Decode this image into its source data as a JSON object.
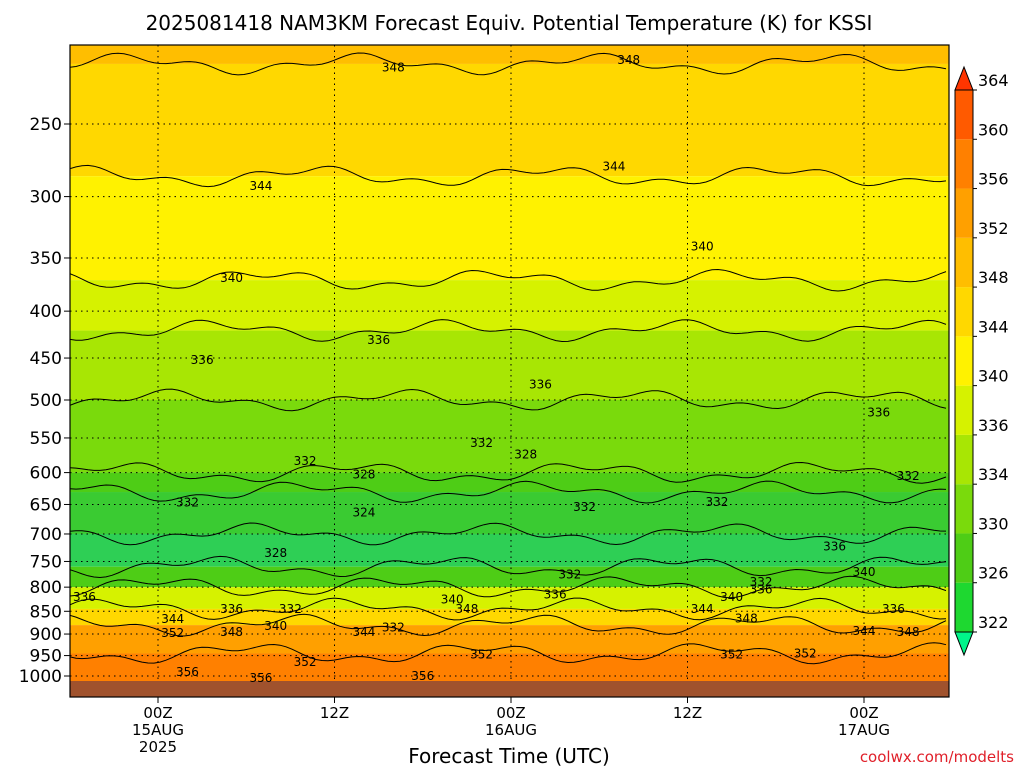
{
  "chart_data": {
    "type": "heatmap",
    "title": "2025081418 NAM3KM Forecast Equiv. Potential Temperature (K) for KSSI",
    "xlabel": "Forecast Time (UTC)",
    "ylabel": "",
    "credit": "coolwx.com/modelts",
    "x_range_hours": [
      -5,
      55
    ],
    "x_ticks": [
      {
        "hour": 0,
        "lines": [
          "00Z",
          "15AUG",
          "2025"
        ]
      },
      {
        "hour": 12,
        "lines": [
          "12Z"
        ]
      },
      {
        "hour": 24,
        "lines": [
          "00Z",
          "16AUG"
        ]
      },
      {
        "hour": 36,
        "lines": [
          "12Z"
        ]
      },
      {
        "hour": 48,
        "lines": [
          "00Z",
          "17AUG"
        ]
      }
    ],
    "y_axis": {
      "scale": "log-pressure",
      "unit": "hPa",
      "range": [
        1050,
        190
      ],
      "reversed": true
    },
    "y_ticks": [
      250,
      300,
      350,
      400,
      450,
      500,
      550,
      600,
      650,
      700,
      750,
      800,
      850,
      900,
      950,
      1000
    ],
    "colorbar": {
      "levels": [
        322,
        326,
        330,
        334,
        336,
        340,
        344,
        348,
        352,
        356,
        360,
        364
      ],
      "colors": [
        "#00f58a",
        "#1ed830",
        "#4ecd16",
        "#7ada0c",
        "#a8e604",
        "#d6f200",
        "#fff200",
        "#ffd800",
        "#ffbe00",
        "#ffa000",
        "#ff8000",
        "#ff5a00",
        "#ff3500"
      ]
    },
    "contour_labels": [
      {
        "hour": 32,
        "p": 213,
        "value": "348"
      },
      {
        "hour": 16,
        "p": 217,
        "value": "348"
      },
      {
        "hour": 31,
        "p": 278,
        "value": "344"
      },
      {
        "hour": 7,
        "p": 292,
        "value": "344"
      },
      {
        "hour": 37,
        "p": 340,
        "value": "340"
      },
      {
        "hour": 5,
        "p": 368,
        "value": "340"
      },
      {
        "hour": 15,
        "p": 430,
        "value": "336"
      },
      {
        "hour": 3,
        "p": 452,
        "value": "336"
      },
      {
        "hour": 26,
        "p": 481,
        "value": "336"
      },
      {
        "hour": 49,
        "p": 516,
        "value": "336"
      },
      {
        "hour": 22,
        "p": 557,
        "value": "332"
      },
      {
        "hour": 10,
        "p": 583,
        "value": "332"
      },
      {
        "hour": 25,
        "p": 573,
        "value": "328"
      },
      {
        "hour": 14,
        "p": 603,
        "value": "328"
      },
      {
        "hour": 51,
        "p": 605,
        "value": "332"
      },
      {
        "hour": 2,
        "p": 647,
        "value": "332"
      },
      {
        "hour": 29,
        "p": 654,
        "value": "332"
      },
      {
        "hour": 38,
        "p": 646,
        "value": "332"
      },
      {
        "hour": 14,
        "p": 663,
        "value": "324"
      },
      {
        "hour": 8,
        "p": 734,
        "value": "328"
      },
      {
        "hour": 46,
        "p": 722,
        "value": "336"
      },
      {
        "hour": 48,
        "p": 770,
        "value": "340"
      },
      {
        "hour": 28,
        "p": 775,
        "value": "332"
      },
      {
        "hour": 41,
        "p": 790,
        "value": "332"
      },
      {
        "hour": 41,
        "p": 805,
        "value": "336"
      },
      {
        "hour": -5,
        "p": 820,
        "value": "336"
      },
      {
        "hour": 27,
        "p": 815,
        "value": "336"
      },
      {
        "hour": 20,
        "p": 825,
        "value": "340"
      },
      {
        "hour": 39,
        "p": 820,
        "value": "340"
      },
      {
        "hour": 5,
        "p": 845,
        "value": "336"
      },
      {
        "hour": 21,
        "p": 845,
        "value": "348"
      },
      {
        "hour": 37,
        "p": 845,
        "value": "344"
      },
      {
        "hour": 50,
        "p": 845,
        "value": "336"
      },
      {
        "hour": 9,
        "p": 845,
        "value": "332"
      },
      {
        "hour": 1,
        "p": 867,
        "value": "344"
      },
      {
        "hour": 8,
        "p": 882,
        "value": "340"
      },
      {
        "hour": 16,
        "p": 885,
        "value": "332"
      },
      {
        "hour": 40,
        "p": 865,
        "value": "348"
      },
      {
        "hour": 1,
        "p": 898,
        "value": "352"
      },
      {
        "hour": 5,
        "p": 895,
        "value": "348"
      },
      {
        "hour": 14,
        "p": 895,
        "value": "344"
      },
      {
        "hour": 48,
        "p": 893,
        "value": "344"
      },
      {
        "hour": 51,
        "p": 895,
        "value": "348"
      },
      {
        "hour": 22,
        "p": 948,
        "value": "352"
      },
      {
        "hour": 39,
        "p": 948,
        "value": "352"
      },
      {
        "hour": 44,
        "p": 945,
        "value": "352"
      },
      {
        "hour": 10,
        "p": 965,
        "value": "352"
      },
      {
        "hour": 2,
        "p": 990,
        "value": "356"
      },
      {
        "hour": 7,
        "p": 1005,
        "value": "356"
      },
      {
        "hour": 18,
        "p": 1000,
        "value": "356"
      }
    ],
    "grid": true,
    "legend": "right"
  }
}
